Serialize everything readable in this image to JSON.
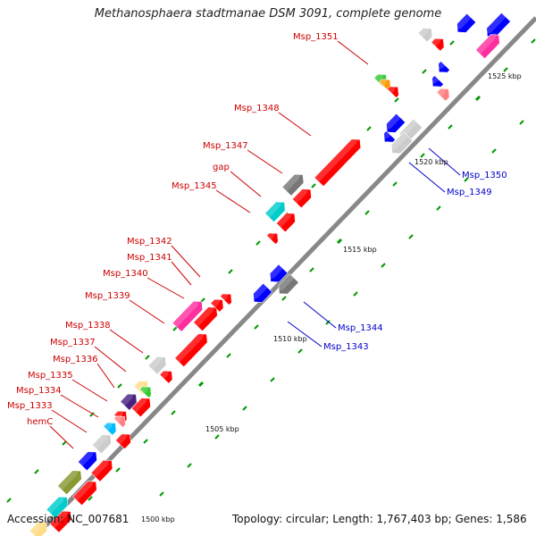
{
  "title": "Methanosphaera stadtmanae DSM 3091, complete genome",
  "footer": {
    "accession": "Accession: NC_007681",
    "summary": "Topology: circular; Length: 1,767,403 bp; Genes: 1,586"
  },
  "colors": {
    "backbone": "#888888",
    "forward_gene": "#ff0000",
    "reverse_gene": "#0000ff",
    "label_forward": "#cc0000",
    "label_reverse": "#0000cc",
    "tick": "#008800"
  },
  "scale_labels": [
    {
      "text": "1500 kbp"
    },
    {
      "text": "1505 kbp"
    },
    {
      "text": "1510 kbp"
    },
    {
      "text": "1515 kbp"
    },
    {
      "text": "1520 kbp"
    },
    {
      "text": "1525 kbp"
    }
  ],
  "gene_labels_forward": [
    "Msp_1351",
    "Msp_1348",
    "Msp_1347",
    "gap",
    "Msp_1345",
    "Msp_1342",
    "Msp_1341",
    "Msp_1340",
    "Msp_1339",
    "Msp_1338",
    "Msp_1337",
    "Msp_1336",
    "Msp_1335",
    "Msp_1334",
    "Msp_1333",
    "hemC"
  ],
  "gene_labels_reverse": [
    "Msp_1350",
    "Msp_1349",
    "Msp_1344",
    "Msp_1343"
  ]
}
